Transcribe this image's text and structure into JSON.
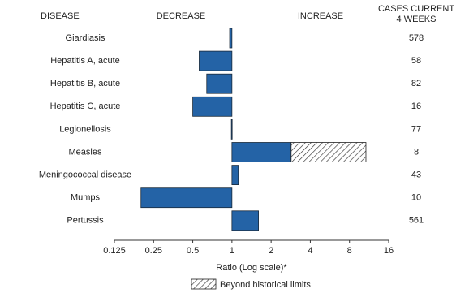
{
  "chart_data": {
    "type": "bar",
    "orientation": "horizontal",
    "log_scale": true,
    "headers": {
      "category": "DISEASE",
      "decrease": "DECREASE",
      "increase": "INCREASE",
      "cases": [
        "CASES CURRENT",
        "4 WEEKS"
      ]
    },
    "categories": [
      "Giardiasis",
      "Hepatitis A, acute",
      "Hepatitis B, acute",
      "Hepatitis C, acute",
      "Legionellosis",
      "Measles",
      "Meningococcal disease",
      "Mumps",
      "Pertussis"
    ],
    "values": [
      0.96,
      0.56,
      0.64,
      0.5,
      0.99,
      10.7,
      1.12,
      0.2,
      1.6
    ],
    "historical_limits": [
      null,
      null,
      null,
      null,
      null,
      2.85,
      null,
      null,
      null
    ],
    "cases": [
      578,
      58,
      82,
      16,
      77,
      8,
      43,
      10,
      561
    ],
    "color": "#2463a6",
    "xlim": [
      0.125,
      16
    ],
    "xticks": [
      0.125,
      0.25,
      0.5,
      1,
      2,
      4,
      8,
      16
    ],
    "xlabel": "Ratio (Log scale)*",
    "legend": "Beyond historical limits"
  }
}
